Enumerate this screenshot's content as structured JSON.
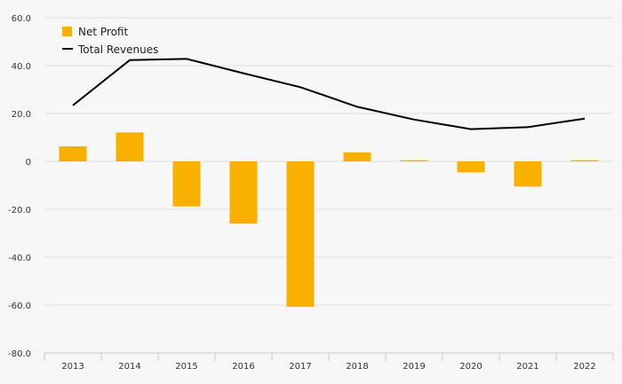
{
  "chart_data": {
    "type": "bar",
    "categories": [
      "2013",
      "2014",
      "2015",
      "2016",
      "2017",
      "2018",
      "2019",
      "2020",
      "2021",
      "2022"
    ],
    "series": [
      {
        "name": "Net Profit",
        "type": "bar",
        "color": "#f9b000",
        "values": [
          6.3,
          12.1,
          -18.8,
          -26.0,
          -60.7,
          3.8,
          0.5,
          -4.6,
          -10.5,
          0.5
        ]
      },
      {
        "name": "Total Revenues",
        "type": "line",
        "color": "#000000",
        "values": [
          23.4,
          42.3,
          42.8,
          36.8,
          31.0,
          22.8,
          17.5,
          13.5,
          14.3,
          17.9
        ]
      }
    ],
    "yticks": [
      "60.0",
      "40.0",
      "20.0",
      "0",
      "-20.0",
      "-40.0",
      "-60.0",
      "-80.0"
    ],
    "ylim": [
      -80,
      60
    ],
    "grid": true,
    "legend": "top-left"
  }
}
